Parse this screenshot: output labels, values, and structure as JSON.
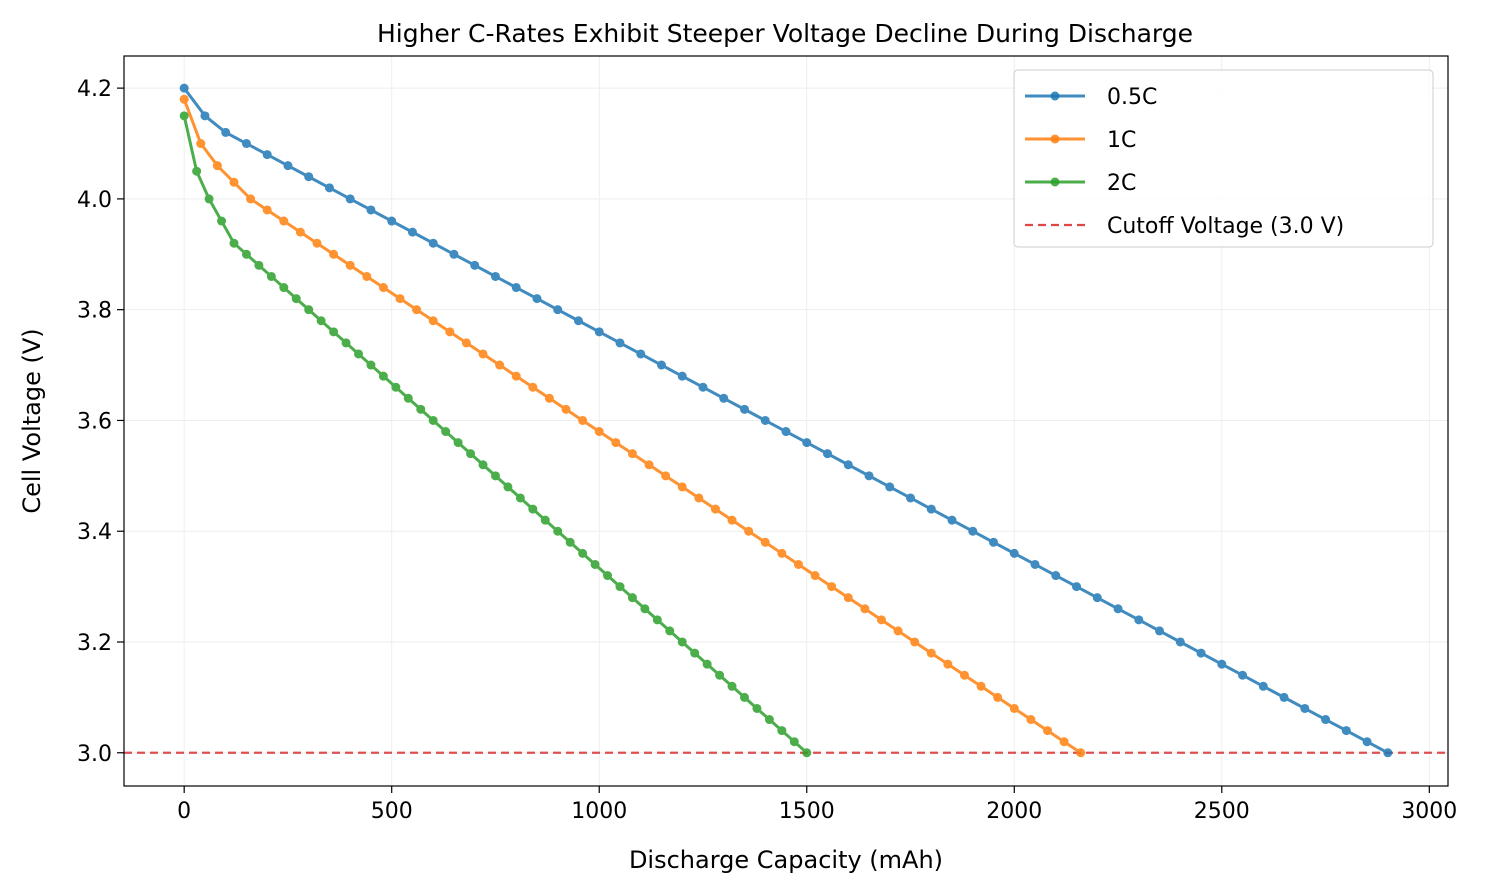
{
  "chart_data": {
    "type": "line",
    "title": "Higher C-Rates Exhibit Steeper Voltage Decline During Discharge",
    "xlabel": "Discharge Capacity (mAh)",
    "ylabel": "Cell Voltage (V)",
    "xlim": [
      -145,
      3045
    ],
    "ylim": [
      2.94,
      4.258
    ],
    "xticks": [
      0,
      500,
      1000,
      1500,
      2000,
      2500,
      3000
    ],
    "yticks": [
      3.0,
      3.2,
      3.4,
      3.6,
      3.8,
      4.0,
      4.2
    ],
    "ytick_labels": [
      "3.0",
      "3.2",
      "3.4",
      "3.6",
      "3.8",
      "4.0",
      "4.2"
    ],
    "grid": true,
    "legend_position": "top-right",
    "series": [
      {
        "name": "0.5C",
        "color": "#1f77b4",
        "x": [
          0,
          50,
          100,
          150,
          200,
          250,
          300,
          350,
          400,
          450,
          500,
          550,
          600,
          650,
          700,
          750,
          800,
          850,
          900,
          950,
          1000,
          1050,
          1100,
          1150,
          1200,
          1250,
          1300,
          1350,
          1400,
          1450,
          1500,
          1550,
          1600,
          1650,
          1700,
          1750,
          1800,
          1850,
          1900,
          1950,
          2000,
          2050,
          2100,
          2150,
          2200,
          2250,
          2300,
          2350,
          2400,
          2450,
          2500,
          2550,
          2600,
          2650,
          2700,
          2750,
          2800,
          2850,
          2900
        ],
        "y": [
          4.2,
          4.15,
          4.12,
          4.1,
          4.08,
          4.06,
          4.04,
          4.02,
          4.0,
          3.98,
          3.96,
          3.94,
          3.92,
          3.9,
          3.88,
          3.86,
          3.84,
          3.82,
          3.8,
          3.78,
          3.76,
          3.74,
          3.72,
          3.7,
          3.68,
          3.66,
          3.64,
          3.62,
          3.6,
          3.58,
          3.56,
          3.54,
          3.52,
          3.5,
          3.48,
          3.46,
          3.44,
          3.42,
          3.4,
          3.38,
          3.36,
          3.34,
          3.32,
          3.3,
          3.28,
          3.26,
          3.24,
          3.22,
          3.2,
          3.18,
          3.16,
          3.14,
          3.12,
          3.1,
          3.08,
          3.06,
          3.04,
          3.02,
          3.0
        ]
      },
      {
        "name": "1C",
        "color": "#ff7f0e",
        "x": [
          0,
          40,
          80,
          120,
          160,
          200,
          240,
          280,
          320,
          360,
          400,
          440,
          480,
          520,
          560,
          600,
          640,
          680,
          720,
          760,
          800,
          840,
          880,
          920,
          960,
          1000,
          1040,
          1080,
          1120,
          1160,
          1200,
          1240,
          1280,
          1320,
          1360,
          1400,
          1440,
          1480,
          1520,
          1560,
          1600,
          1640,
          1680,
          1720,
          1760,
          1800,
          1840,
          1880,
          1920,
          1960,
          2000,
          2040,
          2080,
          2120,
          2160
        ],
        "y": [
          4.18,
          4.1,
          4.06,
          4.03,
          4.0,
          3.98,
          3.96,
          3.94,
          3.92,
          3.9,
          3.88,
          3.86,
          3.84,
          3.82,
          3.8,
          3.78,
          3.76,
          3.74,
          3.72,
          3.7,
          3.68,
          3.66,
          3.64,
          3.62,
          3.6,
          3.58,
          3.56,
          3.54,
          3.52,
          3.5,
          3.48,
          3.46,
          3.44,
          3.42,
          3.4,
          3.38,
          3.36,
          3.34,
          3.32,
          3.3,
          3.28,
          3.26,
          3.24,
          3.22,
          3.2,
          3.18,
          3.16,
          3.14,
          3.12,
          3.1,
          3.08,
          3.06,
          3.04,
          3.02,
          3.0
        ]
      },
      {
        "name": "2C",
        "color": "#2ca02c",
        "x": [
          0,
          30,
          60,
          90,
          120,
          150,
          180,
          210,
          240,
          270,
          300,
          330,
          360,
          390,
          420,
          450,
          480,
          510,
          540,
          570,
          600,
          630,
          660,
          690,
          720,
          750,
          780,
          810,
          840,
          870,
          900,
          930,
          960,
          990,
          1020,
          1050,
          1080,
          1110,
          1140,
          1170,
          1200,
          1230,
          1260,
          1290,
          1320,
          1350,
          1380,
          1410,
          1440,
          1470,
          1500
        ],
        "y": [
          4.15,
          4.05,
          4.0,
          3.96,
          3.92,
          3.9,
          3.88,
          3.86,
          3.84,
          3.82,
          3.8,
          3.78,
          3.76,
          3.74,
          3.72,
          3.7,
          3.68,
          3.66,
          3.64,
          3.62,
          3.6,
          3.58,
          3.56,
          3.54,
          3.52,
          3.5,
          3.48,
          3.46,
          3.44,
          3.42,
          3.4,
          3.38,
          3.36,
          3.34,
          3.32,
          3.3,
          3.28,
          3.26,
          3.24,
          3.22,
          3.2,
          3.18,
          3.16,
          3.14,
          3.12,
          3.1,
          3.08,
          3.06,
          3.04,
          3.02,
          3.0
        ]
      }
    ],
    "reference_line": {
      "name": "Cutoff Voltage (3.0 V)",
      "y": 3.0,
      "color": "#d62728",
      "style": "dashed"
    }
  }
}
